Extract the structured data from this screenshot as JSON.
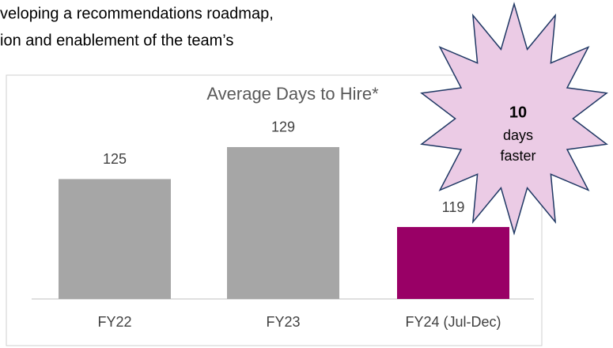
{
  "page_text": [
    "veloping a recommendations roadmap,",
    "ion and enablement of the team’s"
  ],
  "chart_data": {
    "type": "bar",
    "title": "Average Days to Hire*",
    "categories": [
      "FY22",
      "FY23",
      "FY24 (Jul-Dec)"
    ],
    "values": [
      125,
      129,
      119
    ],
    "colors": [
      "#a6a6a6",
      "#a6a6a6",
      "#990066"
    ],
    "ylim": [
      110,
      138
    ],
    "annotation": {
      "number": 10,
      "lines": [
        "days",
        "faster"
      ]
    }
  }
}
